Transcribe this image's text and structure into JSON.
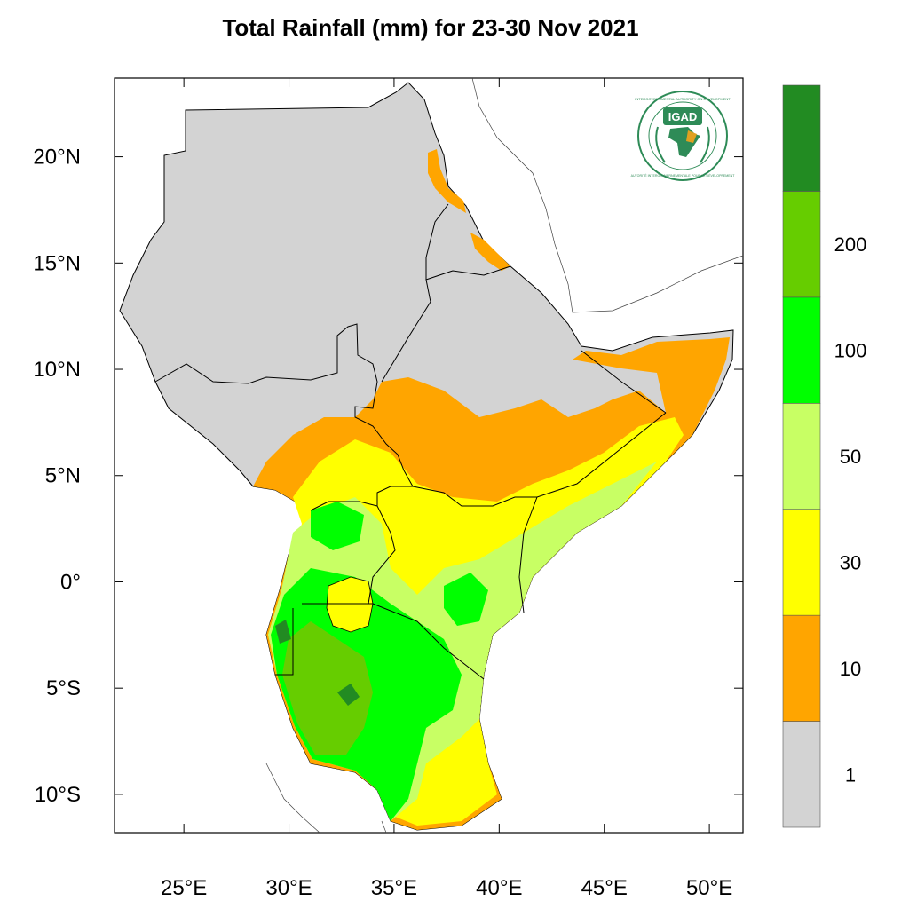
{
  "title": "Total Rainfall (mm) for 23-30 Nov 2021",
  "logo": {
    "acronym": "IGAD",
    "ring_text_top": "INTERGOVERNMENTAL AUTHORITY ON DEVELOPMENT",
    "ring_text_bottom": "AUTORITÉ INTERGOUVERNEMENTALE POUR LE DÉVELOPPEMENT"
  },
  "map": {
    "lon_range": [
      21.7,
      51.6
    ],
    "lat_range": [
      -11.8,
      23.7
    ],
    "lon_ticks": [
      {
        "value": 25,
        "label": "25°E"
      },
      {
        "value": 30,
        "label": "30°E"
      },
      {
        "value": 35,
        "label": "35°E"
      },
      {
        "value": 40,
        "label": "40°E"
      },
      {
        "value": 45,
        "label": "45°E"
      },
      {
        "value": 50,
        "label": "50°E"
      }
    ],
    "lat_ticks": [
      {
        "value": 20,
        "label": "20°N"
      },
      {
        "value": 15,
        "label": "15°N"
      },
      {
        "value": 10,
        "label": "10°N"
      },
      {
        "value": 5,
        "label": "5°N"
      },
      {
        "value": 0,
        "label": "0°"
      },
      {
        "value": -5,
        "label": "5°S"
      },
      {
        "value": -10,
        "label": "10°S"
      }
    ]
  },
  "colorbar": {
    "bins": [
      {
        "color": "#d3d3d3"
      },
      {
        "color": "#ffa500"
      },
      {
        "color": "#ffff00"
      },
      {
        "color": "#c8ff64"
      },
      {
        "color": "#00ff00"
      },
      {
        "color": "#66cd00"
      },
      {
        "color": "#228b22"
      }
    ],
    "labels": [
      "1",
      "10",
      "30",
      "50",
      "100",
      "200"
    ]
  }
}
